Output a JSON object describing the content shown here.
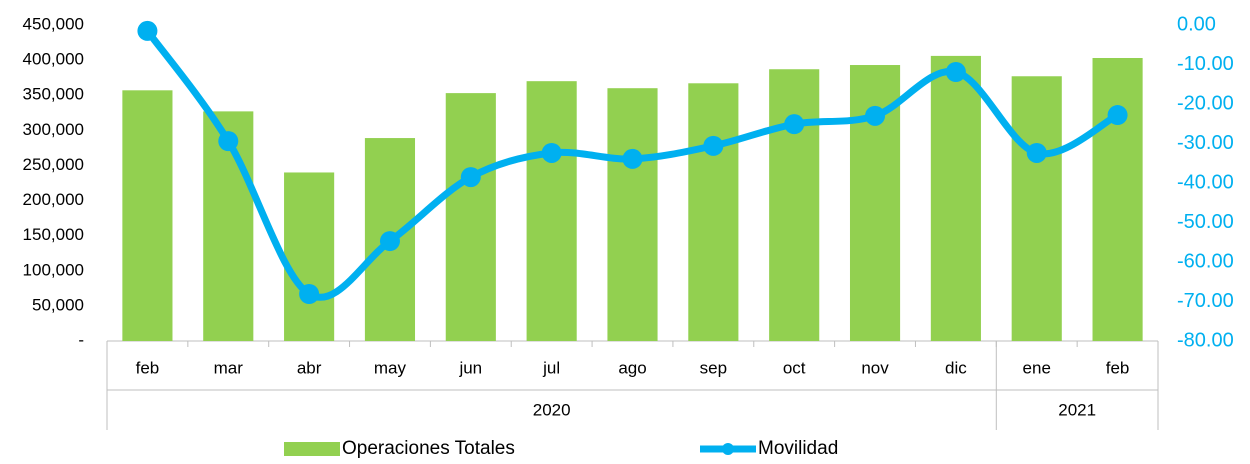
{
  "chart_data": {
    "type": "bar",
    "categories": [
      "feb",
      "mar",
      "abr",
      "may",
      "jun",
      "jul",
      "ago",
      "sep",
      "oct",
      "nov",
      "dic",
      "ene",
      "feb"
    ],
    "groups": [
      {
        "label": "2020",
        "count": 11
      },
      {
        "label": "2021",
        "count": 2
      }
    ],
    "series": [
      {
        "name": "Operaciones Totales",
        "type": "bar",
        "color": "#92d050",
        "values": [
          357000,
          327000,
          240000,
          289000,
          353000,
          370000,
          360000,
          367000,
          387000,
          393000,
          406000,
          377000,
          403000
        ]
      },
      {
        "name": "Movilidad",
        "type": "line",
        "axis": "y2",
        "color": "#00b0f0",
        "values": [
          -1.5,
          -29.4,
          -68.1,
          -54.7,
          -38.5,
          -32.4,
          -33.9,
          -30.6,
          -25.1,
          -23.0,
          -11.9,
          -32.4,
          -22.8
        ]
      }
    ],
    "ylim": [
      0,
      450000
    ],
    "yticks": [
      {
        "value": 0,
        "label": "-"
      },
      {
        "value": 50000,
        "label": "50,000"
      },
      {
        "value": 100000,
        "label": "100,000"
      },
      {
        "value": 150000,
        "label": "150,000"
      },
      {
        "value": 200000,
        "label": "200,000"
      },
      {
        "value": 250000,
        "label": "250,000"
      },
      {
        "value": 300000,
        "label": "300,000"
      },
      {
        "value": 350000,
        "label": "350,000"
      },
      {
        "value": 400000,
        "label": "400,000"
      },
      {
        "value": 450000,
        "label": "450,000"
      }
    ],
    "y2lim": [
      -80,
      0
    ],
    "y2ticks": [
      {
        "value": 0,
        "label": "0.00"
      },
      {
        "value": -10,
        "label": "-10.00"
      },
      {
        "value": -20,
        "label": "-20.00"
      },
      {
        "value": -30,
        "label": "-30.00"
      },
      {
        "value": -40,
        "label": "-40.00"
      },
      {
        "value": -50,
        "label": "-50.00"
      },
      {
        "value": -60,
        "label": "-60.00"
      },
      {
        "value": -70,
        "label": "-70.00"
      },
      {
        "value": -80,
        "label": "-80.00"
      }
    ],
    "y2color": "#00b0f0",
    "grid": false
  }
}
